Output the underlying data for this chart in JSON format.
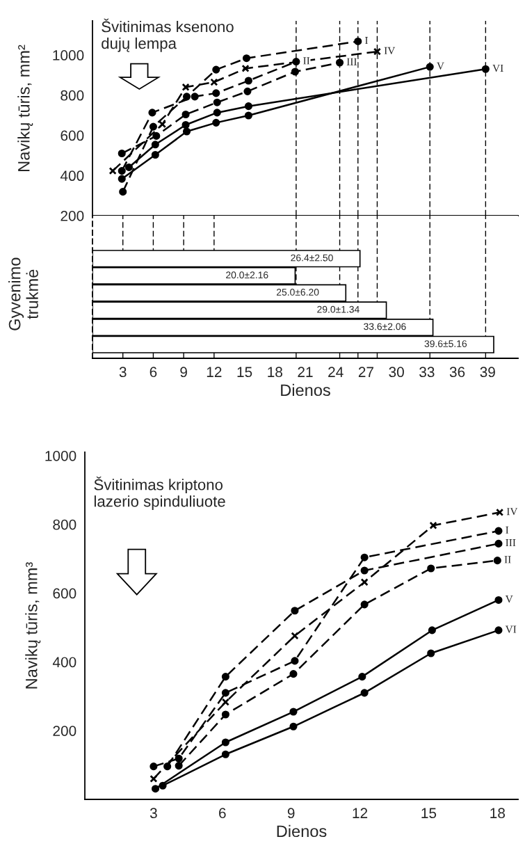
{
  "chart_data": [
    {
      "type": "line",
      "ylabel": "Navikų tūris, mm²",
      "annotations": [
        "Švitinimas ksenono\ndujų lempa"
      ],
      "xlim": [
        0,
        42
      ],
      "ylim": [
        200,
        1170
      ],
      "yticks": [
        200,
        400,
        600,
        800,
        1000
      ],
      "tick_labels": "y",
      "grid": false,
      "legend": false,
      "ref_lines": [
        {
          "axis": "x",
          "value": 20.1,
          "line_style": "dashed"
        },
        {
          "axis": "x",
          "value": 24.4,
          "line_style": "dashed"
        },
        {
          "axis": "x",
          "value": 26.2,
          "line_style": "dashed"
        },
        {
          "axis": "x",
          "value": 28.1,
          "line_style": "dashed"
        },
        {
          "axis": "x",
          "value": 33.3,
          "line_style": "dashed"
        },
        {
          "axis": "x",
          "value": 38.8,
          "line_style": "dashed"
        }
      ],
      "series": [
        {
          "name": "I",
          "color": "#000000",
          "line_style": "dashed",
          "marker": "circle",
          "x": [
            3,
            6,
            9.3,
            12.2,
            15.2,
            26.2
          ],
          "values": [
            319,
            643,
            793,
            927,
            984,
            1068
          ]
        },
        {
          "name": "II",
          "color": "#000000",
          "line_style": "dashed",
          "marker": "circle",
          "x": [
            2.9,
            5.9,
            10.1,
            12.2,
            15.4,
            20.1
          ],
          "values": [
            423,
            713,
            793,
            810,
            872,
            967
          ]
        },
        {
          "name": "III",
          "color": "#000000",
          "line_style": "dashed",
          "marker": "circle",
          "x": [
            2.9,
            6.3,
            9.2,
            12.3,
            15.3,
            20,
            24.4
          ],
          "values": [
            510,
            597,
            704,
            764,
            819,
            917,
            962
          ]
        },
        {
          "name": "IV",
          "color": "#000000",
          "line_style": "dashed",
          "marker": "cross",
          "x": [
            2,
            6.9,
            9.2,
            12,
            15.1,
            28.1
          ],
          "values": [
            423,
            655,
            840,
            865,
            933,
            1017
          ]
        },
        {
          "name": "V",
          "color": "#000000",
          "line_style": "solid",
          "marker": "circle",
          "x": [
            2.9,
            6.2,
            9.3,
            12.2,
            15.4,
            33.3
          ],
          "values": [
            383,
            503,
            619,
            663,
            699,
            941
          ]
        },
        {
          "name": "VI",
          "color": "#000000",
          "line_style": "solid",
          "marker": "circle",
          "x": [
            3.6,
            6.2,
            9.2,
            12.3,
            15.4,
            38.8
          ],
          "values": [
            441,
            554,
            652,
            713,
            745,
            930
          ]
        }
      ]
    },
    {
      "type": "bar",
      "orientation": "horizontal",
      "ylabel": "Gyvenimo\ntrukmė",
      "xlabel": "Dienos",
      "categories": [
        null,
        null,
        null,
        null,
        null,
        null
      ],
      "values": [
        26.4,
        20.0,
        25.0,
        29.0,
        33.6,
        39.6
      ],
      "value_labels": [
        "26.4±2.50",
        "20.0±2.16",
        "25.0±6.20",
        "29.0±1.34",
        "33.6±2.06",
        "39.6±5.16"
      ],
      "color": "#ffffff",
      "xlim": [
        0,
        42
      ],
      "xticks": [
        3,
        6,
        9,
        12,
        15,
        18,
        21,
        24,
        27,
        30,
        33,
        36,
        39
      ],
      "tick_labels": "x",
      "grid": false,
      "legend": false,
      "ref_lines": [
        {
          "axis": "x",
          "value": 3,
          "line_style": "dashed"
        },
        {
          "axis": "x",
          "value": 6,
          "line_style": "dashed"
        },
        {
          "axis": "x",
          "value": 9,
          "line_style": "dashed"
        },
        {
          "axis": "x",
          "value": 12,
          "line_style": "dashed"
        },
        {
          "axis": "x",
          "value": 20.1,
          "line_style": "dashed"
        },
        {
          "axis": "x",
          "value": 24.4,
          "line_style": "dashed"
        },
        {
          "axis": "x",
          "value": 26.2,
          "line_style": "dashed"
        },
        {
          "axis": "x",
          "value": 28.1,
          "line_style": "dashed"
        },
        {
          "axis": "x",
          "value": 33.3,
          "line_style": "dashed"
        },
        {
          "axis": "x",
          "value": 38.8,
          "line_style": "dashed"
        }
      ]
    },
    {
      "type": "line",
      "xlabel": "Dienos",
      "ylabel": "Navikų tūris, mm³",
      "annotations": [
        "Švitinimas kriptono\nlazerio spinduliuote"
      ],
      "xlim": [
        0,
        18.9
      ],
      "xticks": [
        3,
        6,
        9,
        12,
        15,
        18
      ],
      "ylim": [
        0,
        1010
      ],
      "yticks": [
        200,
        400,
        600,
        800,
        1000
      ],
      "grid": false,
      "legend": false,
      "series": [
        {
          "name": "IV",
          "color": "#000000",
          "line_style": "dashed",
          "marker": "cross",
          "x": [
            3,
            6.14,
            9.16,
            12.2,
            15.2,
            18.1
          ],
          "values": [
            60,
            283,
            476,
            632,
            797,
            835
          ]
        },
        {
          "name": "I",
          "color": "#000000",
          "line_style": "dashed",
          "marker": "circle",
          "x": [
            3,
            4.1,
            6.14,
            9.16,
            12.2,
            18.05
          ],
          "values": [
            96,
            119,
            310,
            403,
            704,
            781
          ]
        },
        {
          "name": "III",
          "color": "#000000",
          "line_style": "dashed",
          "marker": "circle",
          "x": [
            3.6,
            6.14,
            9.16,
            12.2,
            18.05
          ],
          "values": [
            96,
            357,
            549,
            666,
            744
          ]
        },
        {
          "name": "II",
          "color": "#000000",
          "line_style": "dashed",
          "marker": "circle",
          "x": [
            4.1,
            6.14,
            9.1,
            12.2,
            15.1,
            18
          ],
          "values": [
            98,
            247,
            365,
            567,
            672,
            695
          ]
        },
        {
          "name": "V",
          "color": "#000000",
          "line_style": "solid",
          "marker": "circle",
          "x": [
            3.08,
            6.14,
            9.1,
            12.1,
            15.15,
            18.05
          ],
          "values": [
            31,
            166,
            255,
            357,
            492,
            580
          ]
        },
        {
          "name": "VI",
          "color": "#000000",
          "line_style": "solid",
          "marker": "circle",
          "x": [
            3.4,
            6.14,
            9.1,
            12.2,
            15.1,
            18.05
          ],
          "values": [
            40,
            131,
            212,
            310,
            425,
            492
          ]
        }
      ]
    }
  ]
}
